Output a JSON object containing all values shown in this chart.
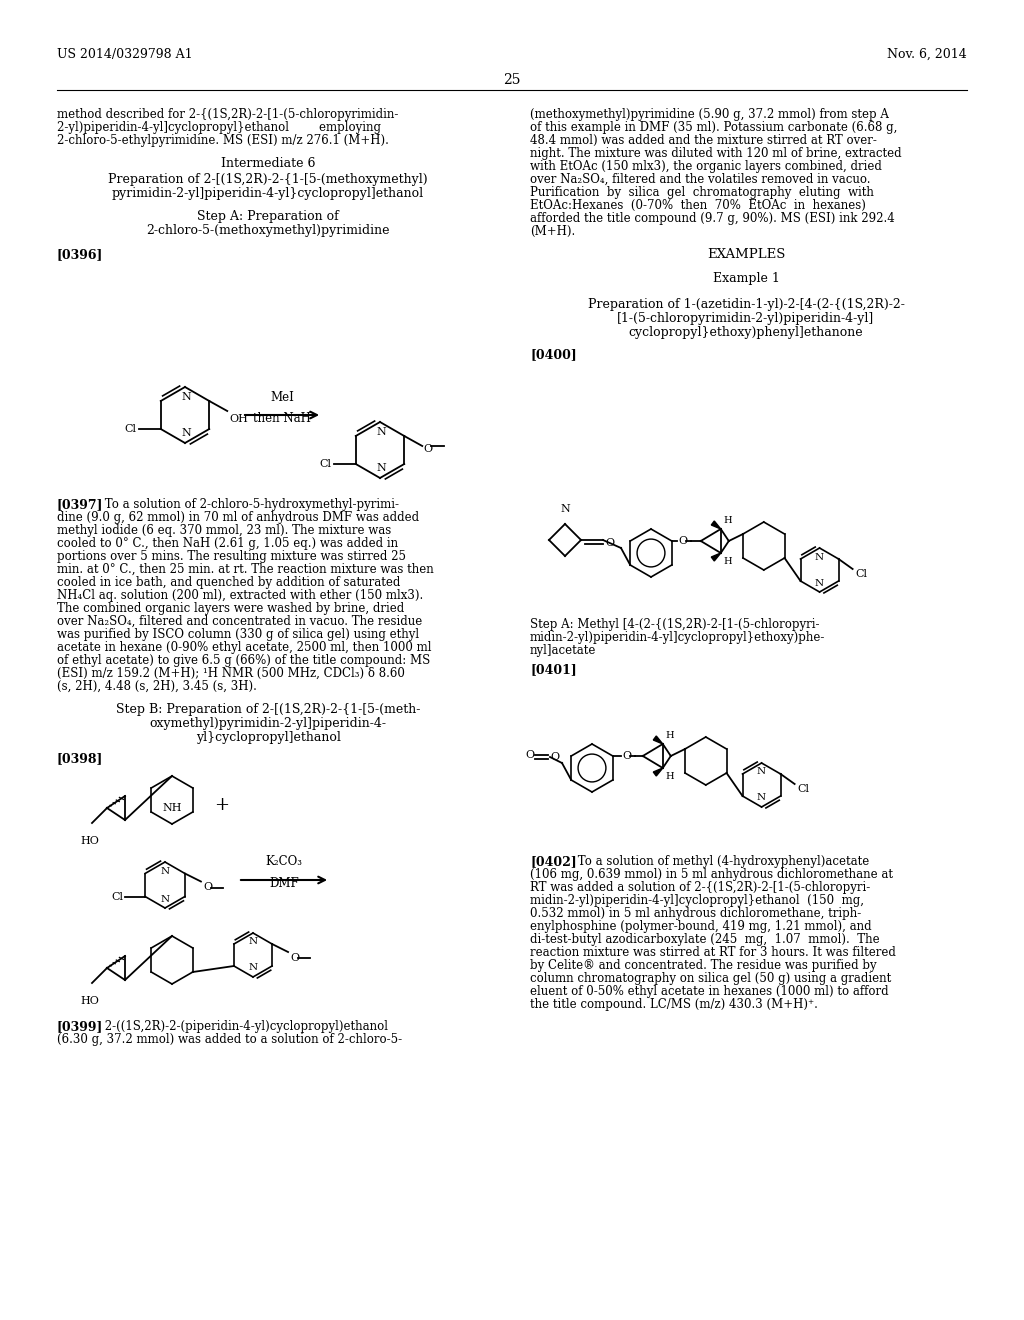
{
  "bg": "#ffffff",
  "header_left": "US 2014/0329798 A1",
  "header_right": "Nov. 6, 2014",
  "page_num": "25"
}
